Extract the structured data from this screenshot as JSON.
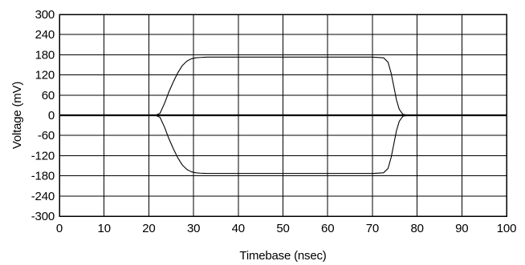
{
  "chart_data": {
    "type": "line",
    "title": "",
    "xlabel": "Timebase (nsec)",
    "ylabel": "Voltage (mV)",
    "xlim": [
      0,
      100
    ],
    "ylim": [
      -300,
      300
    ],
    "x_ticks": [
      0,
      10,
      20,
      30,
      40,
      50,
      60,
      70,
      80,
      90,
      100
    ],
    "y_ticks": [
      300,
      240,
      180,
      120,
      60,
      0,
      -60,
      -120,
      -180,
      -240,
      -300
    ],
    "grid": true,
    "legend": "none",
    "series": [
      {
        "x": [
          0,
          21.5,
          22.5,
          23.5,
          24.5,
          25.5,
          26.5,
          27.5,
          28.5,
          29.5,
          30.5,
          31.5,
          33,
          40,
          50,
          60,
          70,
          72.5,
          73.5,
          74.2,
          74.8,
          75.4,
          76,
          76.8,
          78,
          100
        ],
        "y": [
          0,
          0,
          6,
          35,
          70,
          100,
          127,
          148,
          161,
          168,
          171,
          172,
          173,
          173,
          173,
          173,
          173,
          171,
          158,
          125,
          85,
          45,
          18,
          3,
          0,
          0
        ],
        "color": "#000000"
      },
      {
        "x": [
          0,
          21.5,
          22.5,
          23.5,
          24.5,
          25.5,
          26.5,
          27.5,
          28.5,
          29.5,
          30.5,
          31.5,
          33,
          40,
          50,
          60,
          70,
          72.5,
          73.5,
          74.2,
          74.8,
          75.4,
          76,
          76.8,
          78,
          100
        ],
        "y": [
          0,
          0,
          -6,
          -35,
          -70,
          -100,
          -127,
          -148,
          -161,
          -168,
          -171,
          -172,
          -173,
          -173,
          -173,
          -173,
          -173,
          -171,
          -158,
          -125,
          -85,
          -45,
          -18,
          -3,
          0,
          0
        ],
        "color": "#000000"
      }
    ]
  }
}
